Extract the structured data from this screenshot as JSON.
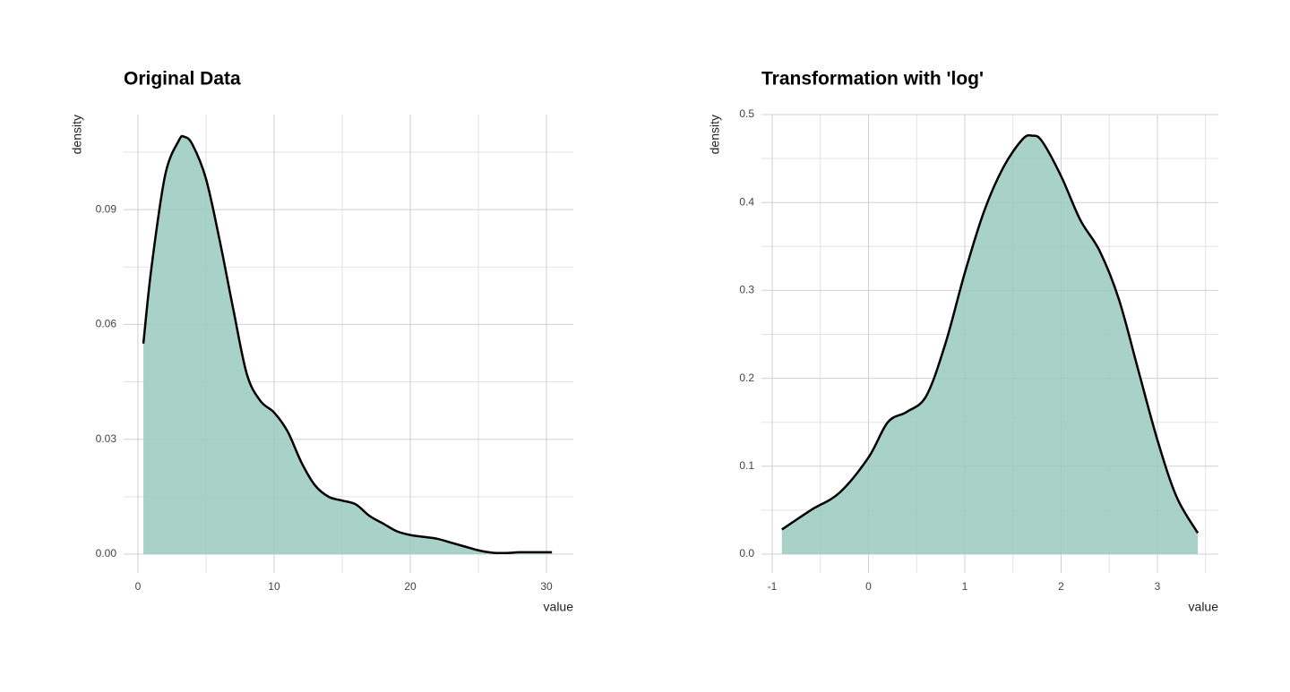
{
  "chart_data": [
    {
      "type": "area",
      "title": "Original Data",
      "xlabel": "value",
      "ylabel": "density",
      "x": [
        0.4,
        1,
        2,
        3,
        3.4,
        4,
        5,
        6,
        7,
        8,
        9,
        10,
        11,
        12,
        13,
        14,
        15,
        16,
        17,
        18,
        19,
        20,
        21,
        22,
        23,
        24,
        25,
        26,
        27,
        28,
        29,
        30.4
      ],
      "values": [
        0.055,
        0.075,
        0.099,
        0.108,
        0.109,
        0.107,
        0.098,
        0.082,
        0.064,
        0.047,
        0.04,
        0.037,
        0.032,
        0.024,
        0.018,
        0.015,
        0.014,
        0.013,
        0.01,
        0.008,
        0.006,
        0.005,
        0.0045,
        0.004,
        0.003,
        0.002,
        0.001,
        0.0004,
        0.0003,
        0.0005,
        0.0005,
        0.0005
      ],
      "color": "#99c9bd",
      "line_color": "#000000",
      "xlim": [
        -1.05,
        31.97
      ],
      "ylim": [
        -0.0049,
        0.1148
      ],
      "xticks": [
        0,
        10,
        20,
        30
      ],
      "yticks": [
        {
          "value": 0,
          "label": "0.00"
        },
        {
          "value": 0.03,
          "label": "0.03"
        },
        {
          "value": 0.06,
          "label": "0.06"
        },
        {
          "value": 0.09,
          "label": "0.09"
        }
      ],
      "x_minor_grid": [
        5,
        15,
        25
      ],
      "y_minor_grid": [
        0.015,
        0.045,
        0.075,
        0.105
      ],
      "grid": true
    },
    {
      "type": "area",
      "title": "Transformation with 'log'",
      "xlabel": "value",
      "ylabel": "density",
      "x": [
        -0.9,
        -0.6,
        -0.3,
        0,
        0.2,
        0.4,
        0.6,
        0.8,
        1.0,
        1.2,
        1.4,
        1.6,
        1.7,
        1.8,
        2.0,
        2.2,
        2.4,
        2.6,
        2.8,
        3.0,
        3.2,
        3.42
      ],
      "values": [
        0.028,
        0.05,
        0.07,
        0.11,
        0.15,
        0.162,
        0.18,
        0.24,
        0.32,
        0.39,
        0.44,
        0.472,
        0.476,
        0.47,
        0.43,
        0.38,
        0.345,
        0.29,
        0.21,
        0.13,
        0.065,
        0.024
      ],
      "color": "#99c9bd",
      "line_color": "#000000",
      "xlim": [
        -1.112,
        3.633
      ],
      "ylim": [
        -0.0214,
        0.5
      ],
      "xticks": [
        -1,
        0,
        1,
        2,
        3
      ],
      "yticks": [
        {
          "value": 0,
          "label": "0.0"
        },
        0.1,
        0.2,
        0.3,
        0.4,
        0.5
      ],
      "x_minor_grid": [
        -0.5,
        0.5,
        1.5,
        2.5,
        3.5
      ],
      "y_minor_grid": [
        0.05,
        0.15,
        0.25,
        0.35,
        0.45
      ],
      "grid": true
    }
  ]
}
